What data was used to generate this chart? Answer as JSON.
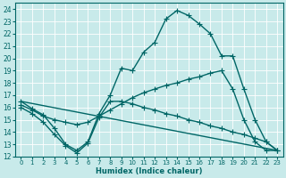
{
  "xlabel": "Humidex (Indice chaleur)",
  "bg_color": "#c8eaea",
  "line_color": "#006666",
  "grid_color": "#ffffff",
  "xlim": [
    -0.5,
    23.5
  ],
  "ylim": [
    12,
    24.5
  ],
  "xticks": [
    0,
    1,
    2,
    3,
    4,
    5,
    6,
    7,
    8,
    9,
    10,
    11,
    12,
    13,
    14,
    15,
    16,
    17,
    18,
    19,
    20,
    21,
    22,
    23
  ],
  "yticks": [
    12,
    13,
    14,
    15,
    16,
    17,
    18,
    19,
    20,
    21,
    22,
    23,
    24
  ],
  "line1_x": [
    0,
    1,
    2,
    3,
    4,
    5,
    6,
    7,
    8,
    9,
    10,
    11,
    12,
    13,
    14,
    15,
    16,
    17,
    18,
    19,
    20,
    21,
    22,
    23
  ],
  "line1_y": [
    16.5,
    15.9,
    15.4,
    14.3,
    13.0,
    12.5,
    13.2,
    15.5,
    17.0,
    19.2,
    19.0,
    20.5,
    21.3,
    23.2,
    23.9,
    23.5,
    22.8,
    22.0,
    20.2,
    20.2,
    17.5,
    15.0,
    13.2,
    12.5
  ],
  "line2_x": [
    0,
    1,
    2,
    3,
    4,
    5,
    6,
    7,
    8,
    9,
    10,
    11,
    12,
    13,
    14,
    15,
    16,
    17,
    18,
    19,
    20,
    21,
    22,
    23
  ],
  "line2_y": [
    16.2,
    15.8,
    15.3,
    15.0,
    14.8,
    14.6,
    14.8,
    15.3,
    15.8,
    16.3,
    16.8,
    17.2,
    17.5,
    17.8,
    18.0,
    18.3,
    18.5,
    18.8,
    19.0,
    17.5,
    15.0,
    13.2,
    12.5,
    12.5
  ],
  "line3_x": [
    0,
    1,
    2,
    3,
    4,
    5,
    6,
    7,
    8,
    9,
    10,
    11,
    12,
    13,
    14,
    15,
    16,
    17,
    18,
    19,
    20,
    21,
    22,
    23
  ],
  "line3_y": [
    16.0,
    15.5,
    14.8,
    13.8,
    12.9,
    12.3,
    13.1,
    15.2,
    16.5,
    16.5,
    16.3,
    16.0,
    15.8,
    15.5,
    15.3,
    15.0,
    14.8,
    14.5,
    14.3,
    14.0,
    13.8,
    13.5,
    13.2,
    12.5
  ],
  "line4_x": [
    0,
    23
  ],
  "line4_y": [
    16.5,
    12.5
  ],
  "marker_size": 2.5,
  "linewidth": 1.0
}
